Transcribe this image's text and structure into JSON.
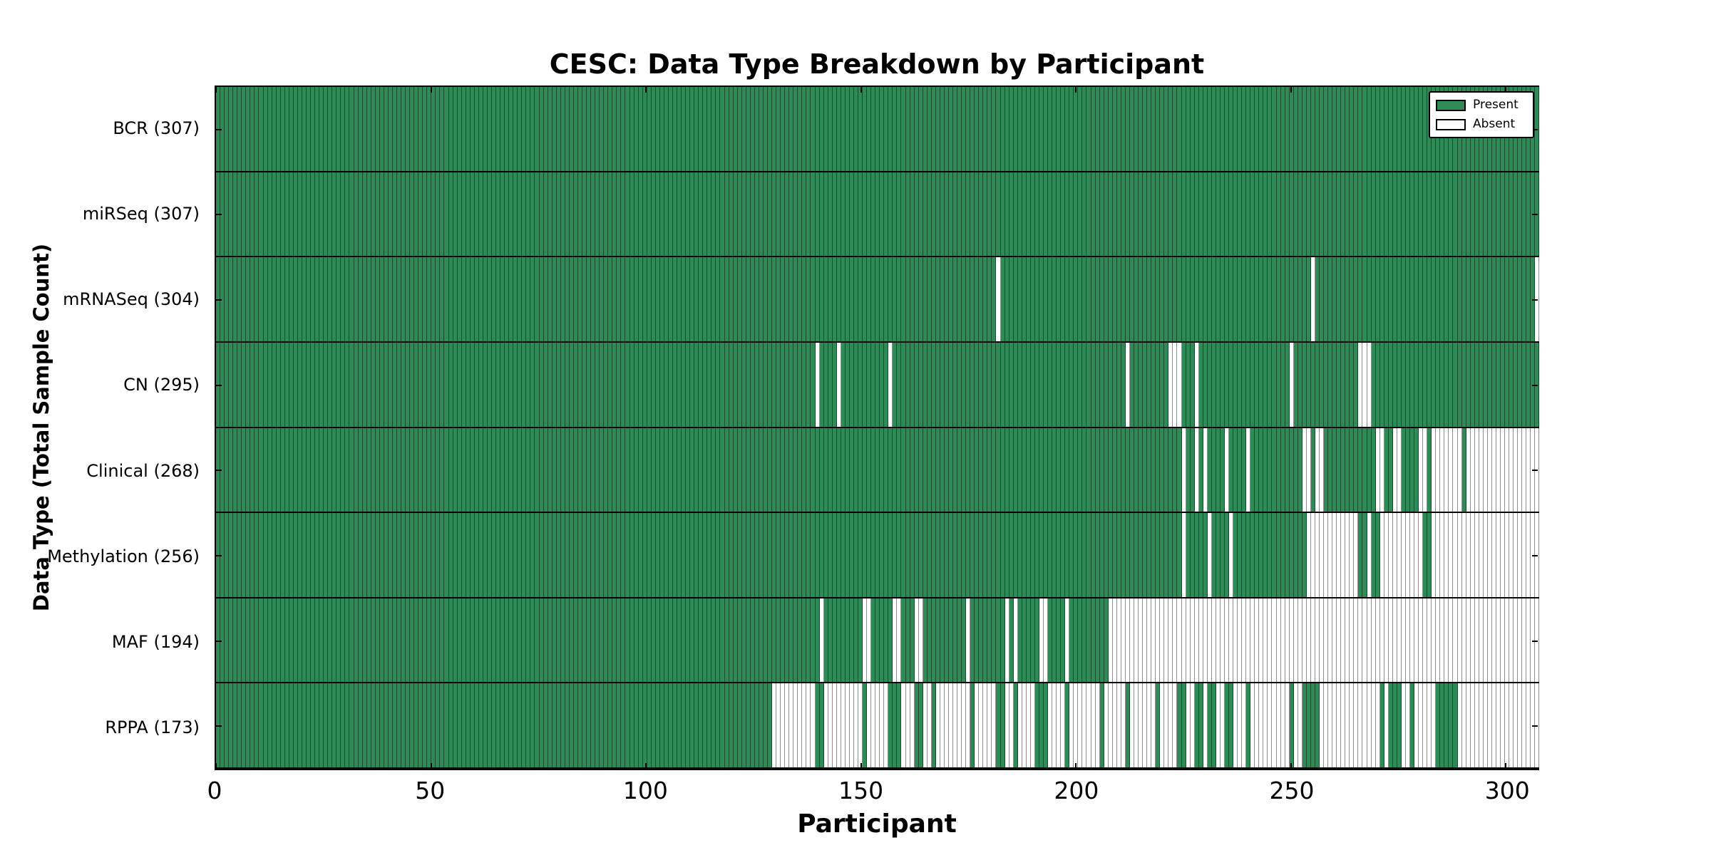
{
  "title": "CESC: Data Type Breakdown by Participant",
  "x_axis_label": "Participant",
  "y_axis_label": "Data Type (Total Sample Count)",
  "legend": {
    "present_label": "Present",
    "absent_label": "Absent"
  },
  "colors": {
    "present": "#2F8A58",
    "absent": "#FFFFFF",
    "present_edge": "rgba(0,25,10,0.55)",
    "absent_edge": "#8F8F8F",
    "frame": "#000000"
  },
  "chart_data": {
    "type": "heatmap",
    "title": "CESC: Data Type Breakdown by Participant",
    "xlabel": "Participant",
    "ylabel": "Data Type (Total Sample Count)",
    "legend_entries": [
      "Present",
      "Absent"
    ],
    "legend_position": "upper right",
    "grid": false,
    "n_participants": 307,
    "x_max": 307.4,
    "x_ticks": [
      {
        "value": 0,
        "label": "0"
      },
      {
        "value": 50,
        "label": "50"
      },
      {
        "value": 100,
        "label": "100"
      },
      {
        "value": 150,
        "label": "150"
      },
      {
        "value": 200,
        "label": "200"
      },
      {
        "value": 250,
        "label": "250"
      },
      {
        "value": 300,
        "label": "300"
      }
    ],
    "rows": [
      {
        "name": "bcr",
        "label": "BCR (307)",
        "data_type": "BCR",
        "present_count": 307,
        "absent_ranges": []
      },
      {
        "name": "mirseq",
        "label": "miRSeq (307)",
        "data_type": "miRSeq",
        "present_count": 307,
        "absent_ranges": []
      },
      {
        "name": "mrnaseq",
        "label": "mRNASeq (304)",
        "data_type": "mRNASeq",
        "present_count": 304,
        "absent_ranges": [
          [
            181,
            181
          ],
          [
            254,
            254
          ],
          [
            306,
            306
          ]
        ]
      },
      {
        "name": "cn",
        "label": "CN (295)",
        "data_type": "CN",
        "present_count": 295,
        "absent_ranges": [
          [
            139,
            139
          ],
          [
            144,
            144
          ],
          [
            156,
            156
          ],
          [
            211,
            211
          ],
          [
            221,
            223
          ],
          [
            227,
            227
          ],
          [
            249,
            249
          ],
          [
            265,
            267
          ]
        ]
      },
      {
        "name": "clinical",
        "label": "Clinical (268)",
        "data_type": "Clinical",
        "present_count": 268,
        "absent_ranges": [
          [
            224,
            224
          ],
          [
            227,
            227
          ],
          [
            229,
            229
          ],
          [
            234,
            234
          ],
          [
            239,
            239
          ],
          [
            252,
            253
          ],
          [
            255,
            256
          ],
          [
            269,
            270
          ],
          [
            273,
            274
          ],
          [
            279,
            280
          ],
          [
            282,
            288
          ],
          [
            290,
            306
          ]
        ]
      },
      {
        "name": "methylation",
        "label": "Methylation (256)",
        "data_type": "Methylation",
        "present_count": 256,
        "absent_ranges": [
          [
            224,
            224
          ],
          [
            230,
            230
          ],
          [
            235,
            235
          ],
          [
            253,
            264
          ],
          [
            267,
            267
          ],
          [
            270,
            279
          ],
          [
            282,
            306
          ]
        ]
      },
      {
        "name": "maf",
        "label": "MAF (194)",
        "data_type": "MAF",
        "present_count": 194,
        "absent_ranges": [
          [
            140,
            140
          ],
          [
            150,
            151
          ],
          [
            157,
            158
          ],
          [
            162,
            163
          ],
          [
            174,
            174
          ],
          [
            183,
            183
          ],
          [
            185,
            185
          ],
          [
            191,
            192
          ],
          [
            197,
            197
          ],
          [
            207,
            306
          ]
        ]
      },
      {
        "name": "rppa",
        "label": "RPPA (173)",
        "data_type": "RPPA",
        "present_count": 173,
        "absent_ranges": [
          [
            129,
            138
          ],
          [
            141,
            149
          ],
          [
            151,
            155
          ],
          [
            159,
            161
          ],
          [
            164,
            165
          ],
          [
            167,
            174
          ],
          [
            176,
            180
          ],
          [
            183,
            184
          ],
          [
            186,
            189
          ],
          [
            193,
            196
          ],
          [
            198,
            204
          ],
          [
            206,
            210
          ],
          [
            212,
            217
          ],
          [
            219,
            222
          ],
          [
            225,
            226
          ],
          [
            229,
            229
          ],
          [
            232,
            233
          ],
          [
            236,
            238
          ],
          [
            240,
            248
          ],
          [
            250,
            251
          ],
          [
            256,
            269
          ],
          [
            271,
            271
          ],
          [
            275,
            276
          ],
          [
            278,
            282
          ],
          [
            288,
            306
          ]
        ]
      }
    ]
  }
}
